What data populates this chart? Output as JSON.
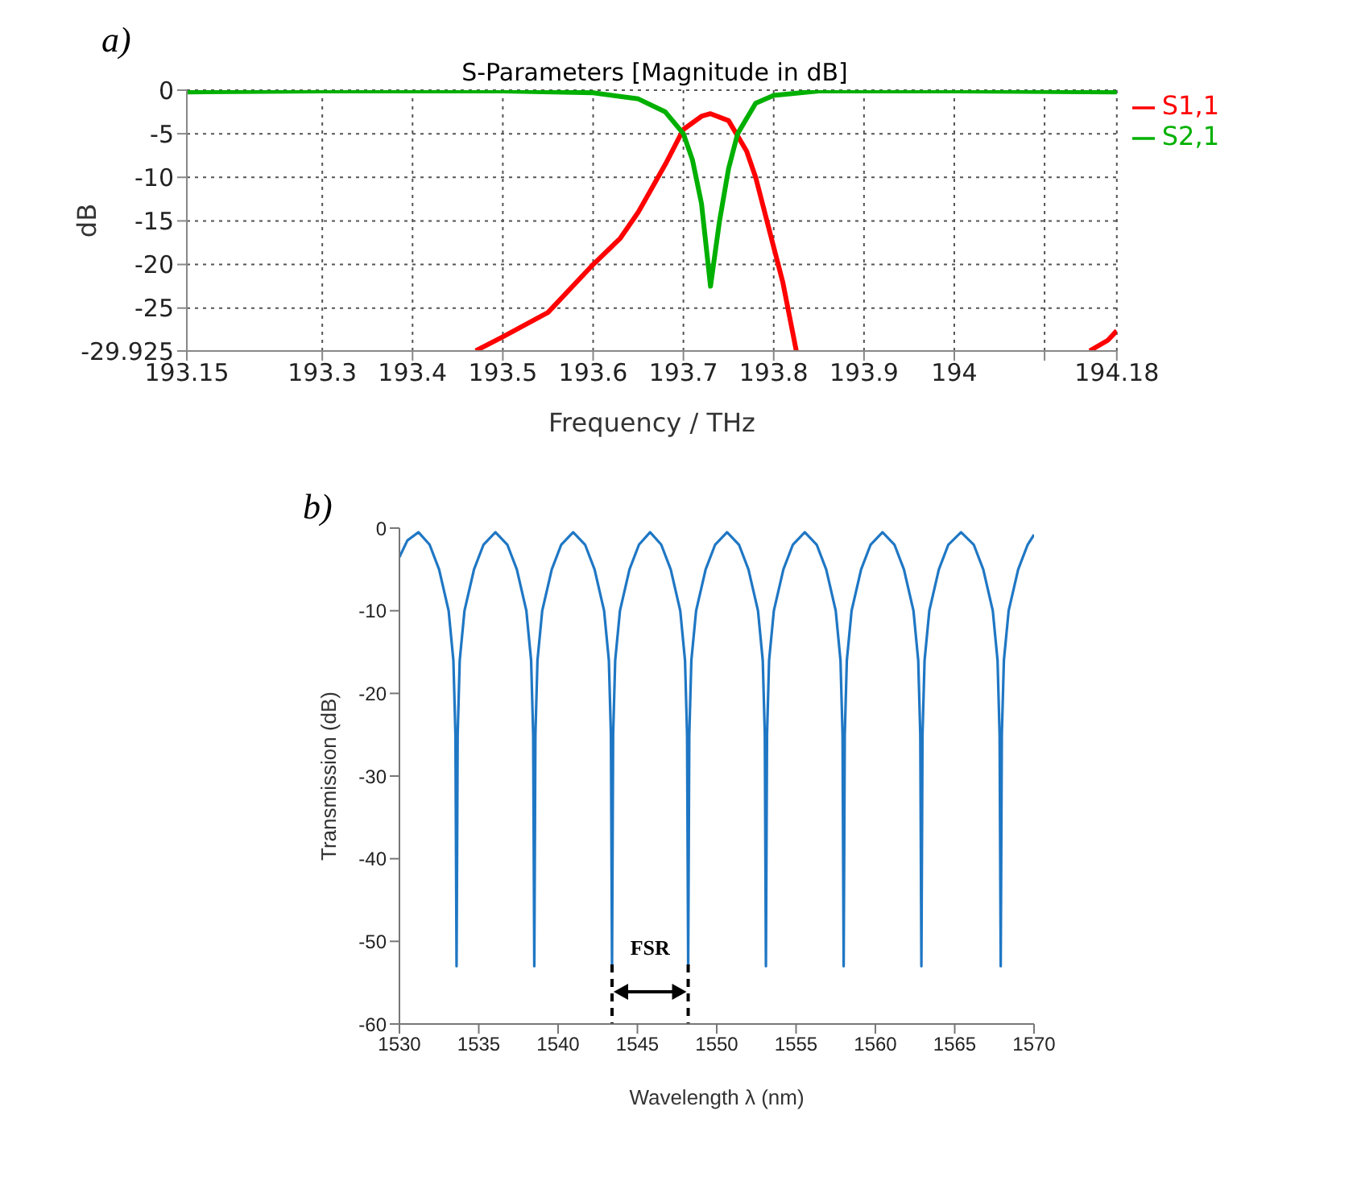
{
  "chart_data": [
    {
      "type": "line",
      "title": "S-Parameters [Magnitude in dB]",
      "xlabel": "Frequency / THz",
      "ylabel": "dB",
      "annotations": [
        "a)"
      ],
      "xlim": [
        193.15,
        194.18
      ],
      "ylim": [
        -29.925,
        0
      ],
      "xticks": [
        193.15,
        193.3,
        193.4,
        193.5,
        193.6,
        193.7,
        193.8,
        193.9,
        194,
        {
          "value": 194.1,
          "label": null
        },
        194.18
      ],
      "yticks": [
        0,
        -5,
        -10,
        -15,
        -20,
        -25,
        -29.925
      ],
      "grid": true,
      "legend": "right",
      "series": [
        {
          "name": "S1,1",
          "color": "#ff0000",
          "x": [
            193.47,
            193.5,
            193.55,
            193.6,
            193.63,
            193.65,
            193.68,
            193.7,
            193.72,
            193.73,
            193.75,
            193.77,
            193.78,
            193.8,
            193.81,
            193.825,
            193.9,
            194.15,
            194.17,
            194.18
          ],
          "values": [
            -29.9,
            -28.3,
            -25.5,
            -20,
            -17,
            -14,
            -8.5,
            -4.5,
            -3,
            -2.7,
            -3.5,
            -7,
            -10,
            -18,
            -22,
            -29.9,
            null,
            -29.9,
            -28.7,
            -27.6
          ]
        },
        {
          "name": "S2,1",
          "color": "#00b000",
          "x": [
            193.15,
            193.3,
            193.5,
            193.6,
            193.65,
            193.68,
            193.7,
            193.71,
            193.72,
            193.73,
            193.74,
            193.75,
            193.76,
            193.78,
            193.8,
            193.85,
            194,
            194.18
          ],
          "values": [
            -0.2,
            -0.1,
            -0.1,
            -0.3,
            -1,
            -2.5,
            -5,
            -8,
            -13,
            -22.5,
            -15,
            -9,
            -5,
            -1.5,
            -0.6,
            -0.1,
            -0.1,
            -0.2
          ]
        }
      ]
    },
    {
      "type": "line",
      "xlabel": "Wavelength λ (nm)",
      "ylabel": "Transmission (dB)",
      "annotations": [
        "b)",
        "FSR"
      ],
      "xlim": [
        1530,
        1570
      ],
      "ylim": [
        -60,
        0
      ],
      "xticks": [
        1530,
        1535,
        1540,
        1545,
        1550,
        1555,
        1560,
        1565,
        1570
      ],
      "yticks": [
        0,
        -10,
        -20,
        -30,
        -40,
        -50,
        -60
      ],
      "grid": false,
      "legend": false,
      "ref_lines": [
        {
          "axis": "x",
          "value": 1543.4,
          "line_style": "dashed",
          "color": "#000000"
        },
        {
          "axis": "x",
          "value": 1548.2,
          "line_style": "dashed",
          "color": "#000000"
        }
      ],
      "series": [
        {
          "color": "#1f77c4",
          "x": [
            1530,
            1530.5,
            1531.2,
            1531.9,
            1532.5,
            1533.1,
            1533.4,
            1533.53,
            1533.6,
            1533.67,
            1533.8,
            1534.1,
            1534.7,
            1535.3,
            1536.05,
            1536.8,
            1537.4,
            1538.0,
            1538.3,
            1538.43,
            1538.5,
            1538.57,
            1538.7,
            1539.0,
            1539.6,
            1540.2,
            1540.95,
            1541.7,
            1542.3,
            1542.9,
            1543.2,
            1543.33,
            1543.4,
            1543.47,
            1543.6,
            1543.9,
            1544.5,
            1545.1,
            1545.8,
            1546.5,
            1547.1,
            1547.7,
            1548.0,
            1548.13,
            1548.2,
            1548.27,
            1548.4,
            1548.7,
            1549.3,
            1549.9,
            1550.65,
            1551.4,
            1552.0,
            1552.6,
            1552.9,
            1553.03,
            1553.1,
            1553.17,
            1553.3,
            1553.6,
            1554.2,
            1554.8,
            1555.55,
            1556.3,
            1556.9,
            1557.5,
            1557.8,
            1557.93,
            1558.0,
            1558.07,
            1558.2,
            1558.5,
            1559.1,
            1559.7,
            1560.45,
            1561.2,
            1561.8,
            1562.4,
            1562.7,
            1562.83,
            1562.9,
            1562.97,
            1563.1,
            1563.4,
            1564.0,
            1564.6,
            1565.4,
            1566.2,
            1566.8,
            1567.4,
            1567.7,
            1567.83,
            1567.9,
            1567.97,
            1568.1,
            1568.4,
            1569.0,
            1569.6,
            1570
          ],
          "values": [
            -3.5,
            -1.5,
            -0.5,
            -2,
            -5,
            -10,
            -16,
            -25,
            -53,
            -25,
            -16,
            -10,
            -5,
            -2,
            -0.5,
            -2,
            -5,
            -10,
            -16,
            -25,
            -53,
            -25,
            -16,
            -10,
            -5,
            -2,
            -0.5,
            -2,
            -5,
            -10,
            -16,
            -25,
            -53,
            -25,
            -16,
            -10,
            -5,
            -2,
            -0.5,
            -2,
            -5,
            -10,
            -16,
            -25,
            -53,
            -25,
            -16,
            -10,
            -5,
            -2,
            -0.5,
            -2,
            -5,
            -10,
            -16,
            -25,
            -53,
            -25,
            -16,
            -10,
            -5,
            -2,
            -0.5,
            -2,
            -5,
            -10,
            -16,
            -25,
            -53,
            -25,
            -16,
            -10,
            -5,
            -2,
            -0.5,
            -2,
            -5,
            -10,
            -16,
            -25,
            -53,
            -25,
            -16,
            -10,
            -5,
            -2,
            -0.5,
            -2,
            -5,
            -10,
            -16,
            -25,
            -53,
            -25,
            -16,
            -10,
            -5,
            -2,
            -0.8
          ]
        }
      ]
    }
  ]
}
